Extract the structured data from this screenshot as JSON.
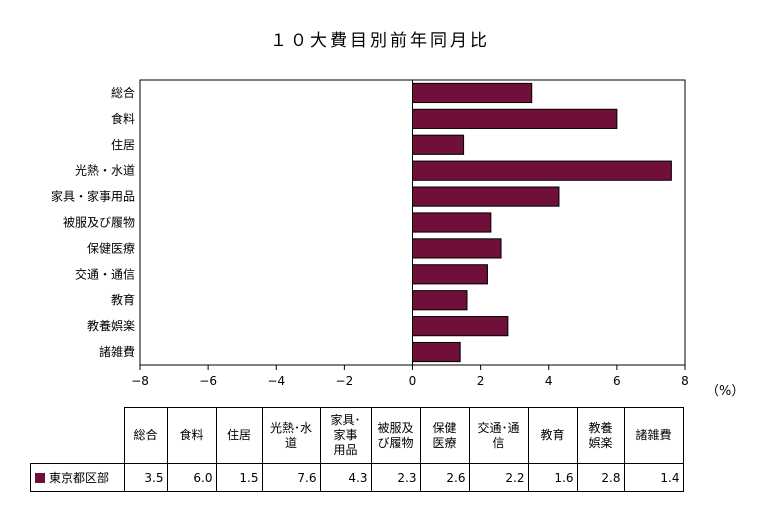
{
  "chart_data": {
    "type": "bar",
    "orientation": "horizontal",
    "title": "１０大費目別前年同月比",
    "categories": [
      "総合",
      "食料",
      "住居",
      "光熱・水道",
      "家具・家事用品",
      "被服及び履物",
      "保健医療",
      "交通・通信",
      "教育",
      "教養娯楽",
      "諸雑費"
    ],
    "table_headers": [
      "総合",
      "食料",
      "住居",
      "光熱･水道",
      "家具･家事用品",
      "被服及び履物",
      "保健医療",
      "交通･通信",
      "教育",
      "教養娯楽",
      "諸雑費"
    ],
    "series": [
      {
        "name": "東京都区部",
        "values": [
          3.5,
          6.0,
          1.5,
          7.6,
          4.3,
          2.3,
          2.6,
          2.2,
          1.6,
          2.8,
          1.4
        ],
        "color": "#6f0f3a"
      }
    ],
    "xlim": [
      -8,
      8
    ],
    "x_ticks": [
      -8,
      -6,
      -4,
      -2,
      0,
      2,
      4,
      6,
      8
    ],
    "x_unit": "（%）",
    "grid": false,
    "legend": "data-table"
  }
}
